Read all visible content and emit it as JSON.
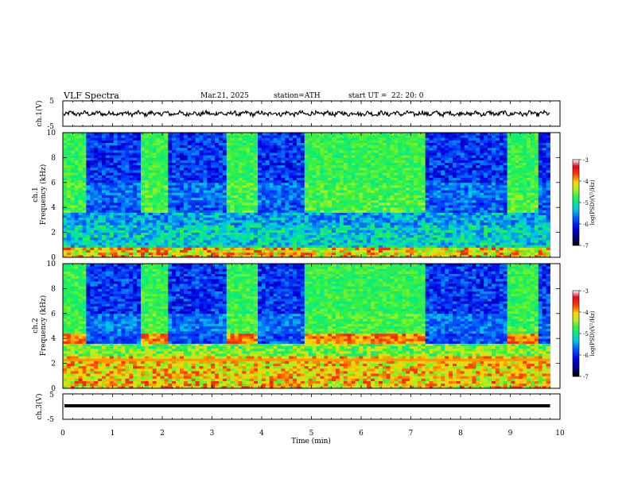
{
  "header": {
    "title": "VLF  Spectra",
    "date": "Mar.21, 2025",
    "station": "station=ATH",
    "start_label": "start  UT  =",
    "start_time": "22: 20: 0"
  },
  "colors": {
    "background": "#ffffff",
    "axis": "#000000",
    "trace": "#000000"
  },
  "chart_data": [
    {
      "type": "line",
      "ylabel": "ch.1(V)",
      "yticks": [
        "5",
        "-5"
      ],
      "ylim": [
        -5,
        5
      ],
      "xlim": [
        0,
        10
      ],
      "trace_note_level": 0,
      "x_end": 9.8
    },
    {
      "type": "heatmap",
      "ylabel_top": "ch.1",
      "ylabel": "Frequency  (kHz)",
      "yticks": [
        "0",
        "2",
        "4",
        "6",
        "8",
        "10"
      ],
      "ylim": [
        0,
        10
      ],
      "xlim": [
        0,
        10
      ],
      "data_x_end": 9.8,
      "bright_intervals_min": [
        [
          0.0,
          0.5
        ],
        [
          1.55,
          2.15
        ],
        [
          3.3,
          3.95
        ],
        [
          4.9,
          7.3
        ],
        [
          8.95,
          9.55
        ]
      ],
      "colorbar": {
        "label": "log(PSD)(V²/Hz)",
        "ticks": [
          "-3",
          "-4",
          "-5",
          "-6",
          "-7"
        ],
        "range": [
          -7,
          -3
        ]
      }
    },
    {
      "type": "heatmap",
      "ylabel_top": "ch.2",
      "ylabel": "Frequency  (kHz)",
      "yticks": [
        "0",
        "2",
        "4",
        "6",
        "8",
        "10"
      ],
      "ylim": [
        0,
        10
      ],
      "xlim": [
        0,
        10
      ],
      "data_x_end": 9.8,
      "bright_intervals_min": [
        [
          0.0,
          0.5
        ],
        [
          1.55,
          2.15
        ],
        [
          3.3,
          3.95
        ],
        [
          4.9,
          7.3
        ],
        [
          8.95,
          9.55
        ]
      ],
      "colorbar": {
        "label": "log(PSD)(V²/Hz)",
        "ticks": [
          "-3",
          "-4",
          "-5",
          "-6",
          "-7"
        ],
        "range": [
          -7,
          -3
        ]
      }
    },
    {
      "type": "line",
      "ylabel": "ch.3(V)",
      "yticks": [
        "5",
        "-5"
      ],
      "ylim": [
        -5,
        5
      ],
      "xlim": [
        0,
        10
      ],
      "x_end": 9.8,
      "level": 0
    }
  ],
  "xaxis": {
    "label": "Time  (min)",
    "ticks": [
      "0",
      "1",
      "2",
      "3",
      "4",
      "5",
      "6",
      "7",
      "8",
      "9",
      "10"
    ],
    "range": [
      0,
      10
    ]
  }
}
